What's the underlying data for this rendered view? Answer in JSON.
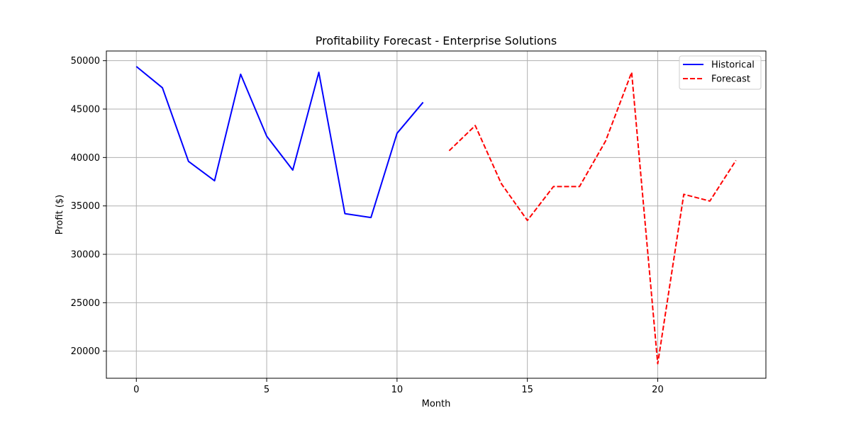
{
  "chart_data": {
    "type": "line",
    "title": "Profitability Forecast - Enterprise Solutions",
    "xlabel": "Month",
    "ylabel": "Profit ($)",
    "xlim": [
      -1.15,
      24.15
    ],
    "ylim": [
      17200,
      51000
    ],
    "xticks": [
      0,
      5,
      10,
      15,
      20
    ],
    "yticks": [
      20000,
      25000,
      30000,
      35000,
      40000,
      45000,
      50000
    ],
    "grid": true,
    "legend_position": "top-right",
    "series": [
      {
        "name": "Historical",
        "color": "#0000ff",
        "dash": "solid",
        "x": [
          0,
          1,
          2,
          3,
          4,
          5,
          6,
          7,
          8,
          9,
          10,
          11
        ],
        "values": [
          49400,
          47200,
          39600,
          37600,
          48600,
          42200,
          38700,
          48800,
          34200,
          33800,
          42500,
          45700
        ]
      },
      {
        "name": "Forecast",
        "color": "#ff0000",
        "dash": "dashed",
        "x": [
          12,
          13,
          14,
          15,
          16,
          17,
          18,
          19,
          20,
          21,
          22,
          23
        ],
        "values": [
          40700,
          43300,
          37300,
          33500,
          37000,
          37000,
          41700,
          48800,
          18700,
          36200,
          35500,
          39700
        ]
      }
    ]
  }
}
